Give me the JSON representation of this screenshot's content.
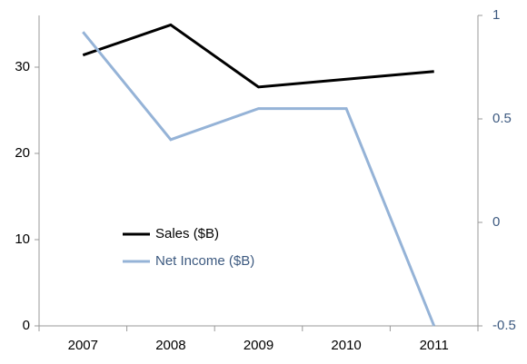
{
  "chart_data": {
    "type": "line",
    "categories": [
      "2007",
      "2008",
      "2009",
      "2010",
      "2011"
    ],
    "series": [
      {
        "name": "Sales ($B)",
        "color": "#000000",
        "values": [
          31.4,
          34.9,
          27.7,
          28.6,
          29.5
        ]
      },
      {
        "name": "Net Income ($B)",
        "color": "#95b3d7",
        "axis": "y2",
        "values": [
          0.92,
          0.4,
          0.55,
          0.55,
          -0.5
        ]
      }
    ],
    "ylim": [
      0,
      36
    ],
    "yticks": [
      0,
      10,
      20,
      30
    ],
    "y2lim": [
      -0.5,
      1
    ],
    "y2ticks": [
      -0.5,
      0,
      0.5,
      1
    ],
    "grid": false,
    "legend": "left"
  }
}
